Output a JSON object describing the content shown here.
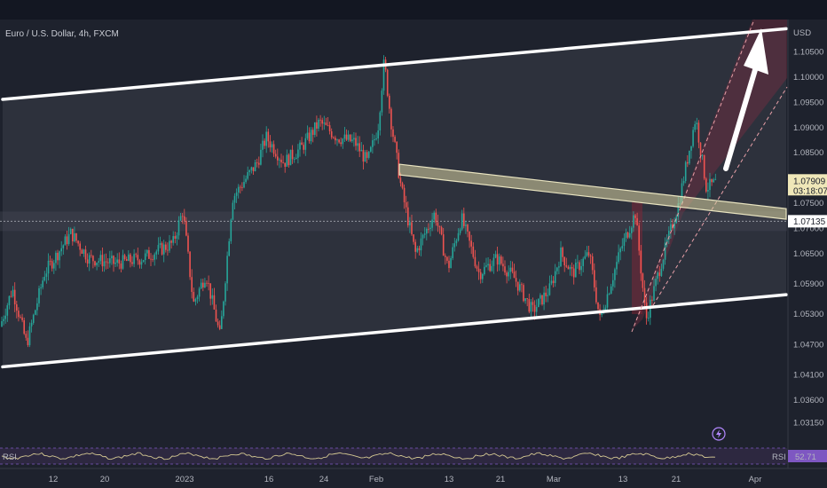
{
  "chart_data": {
    "type": "candlestick",
    "title": "Euro / U.S. Dollar, 4h, FXCM",
    "currency": "USD",
    "y_ticks": [
      1.105,
      1.1,
      1.095,
      1.09,
      1.085,
      1.075,
      1.07,
      1.065,
      1.059,
      1.053,
      1.047,
      1.041,
      1.036,
      1.0315
    ],
    "y_tick_labels": [
      "1.10500",
      "1.10000",
      "1.09500",
      "1.09000",
      "1.08500",
      "1.07500",
      "1.07000",
      "1.06500",
      "1.05900",
      "1.05300",
      "1.04700",
      "1.04100",
      "1.03600",
      "1.03150"
    ],
    "ylim": [
      1.0285,
      1.1095
    ],
    "x_tick_labels": [
      "12",
      "20",
      "2023",
      "16",
      "24",
      "Feb",
      "13",
      "21",
      "Mar",
      "13",
      "21",
      "Apr"
    ],
    "current_price": "1.07909",
    "countdown": "03:18:07",
    "reference_price": "1.07135",
    "key_prices": {
      "start": 1.0505,
      "dec_high": 1.0735,
      "jan_low": 1.0485,
      "feb_high": 1.1032,
      "feb_drop": 1.0615,
      "mar_low": 1.0518,
      "mar_high": 1.092,
      "last": 1.0791
    },
    "channel": {
      "upper": [
        1.0955,
        1.1095
      ],
      "lower": [
        1.0425,
        1.0568
      ]
    },
    "resistance_band": {
      "start": 1.0816,
      "end": 1.0728
    },
    "rsi": {
      "label": "RSI",
      "value": "52.71"
    },
    "colors": {
      "up": "#26a69a",
      "down": "#ef5350",
      "background": "#1e222d",
      "band": "#d8d2a0"
    }
  }
}
